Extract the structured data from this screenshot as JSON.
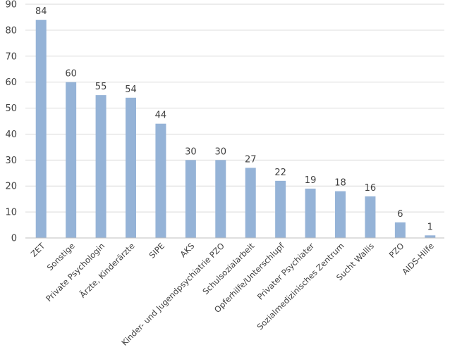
{
  "chart_data": {
    "type": "bar",
    "title": "",
    "xlabel": "",
    "ylabel": "",
    "ylim": [
      0,
      90
    ],
    "y_ticks": [
      0,
      10,
      20,
      30,
      40,
      50,
      60,
      70,
      80,
      90
    ],
    "grid": true,
    "legend": "none",
    "bar_color": "#95b3d7",
    "categories": [
      "ZET",
      "Sonstige",
      "Private Psychologin",
      "Ärzte, Kinderärzte",
      "SIPE",
      "AKS",
      "Kinder- und Jugendpsychiatrie PZO",
      "Schulsozialarbeit",
      "Opferhilfe/Unterschlupf",
      "Privater Psychiater",
      "Sozialmedizinisches Zentrum",
      "Sucht Wallis",
      "PZO",
      "AIDS-Hilfe"
    ],
    "values": [
      84,
      60,
      55,
      54,
      44,
      30,
      30,
      27,
      22,
      19,
      18,
      16,
      6,
      1
    ]
  }
}
